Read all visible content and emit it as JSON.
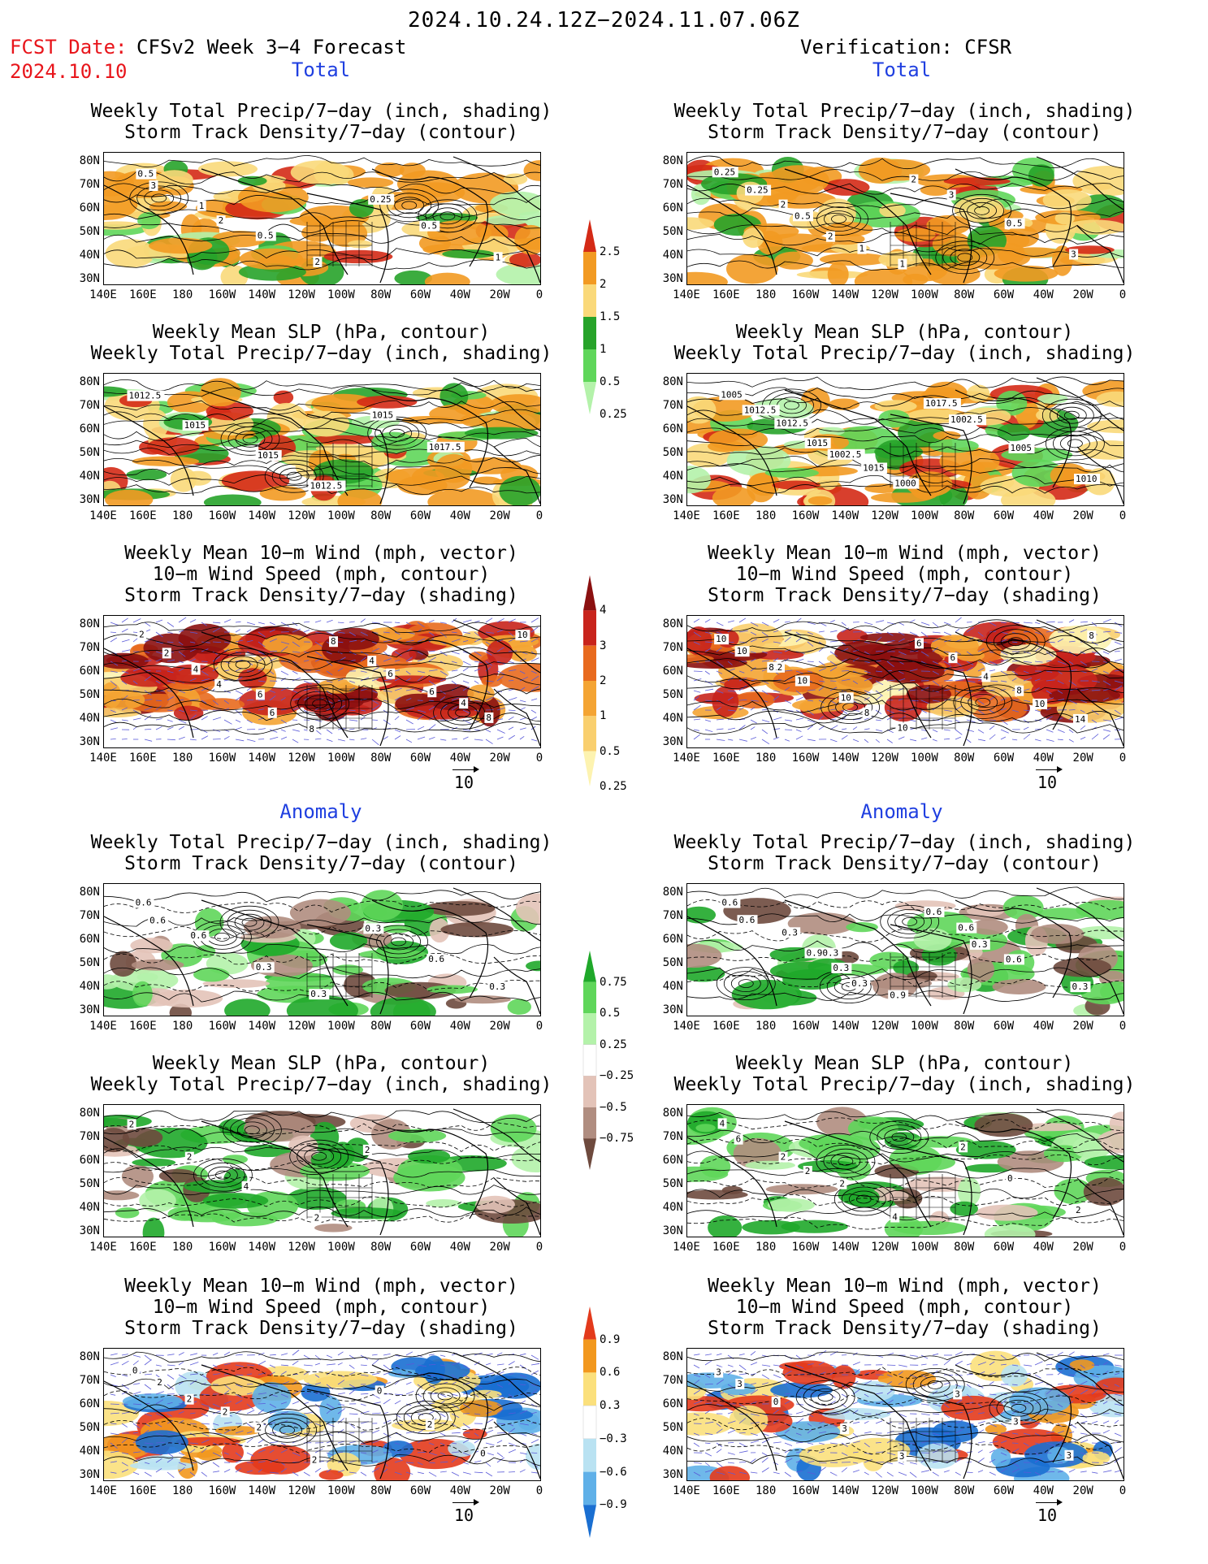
{
  "header": {
    "title": "2024.10.24.12Z−2024.11.07.06Z",
    "fcst_label": "FCST Date:",
    "fcst_date": "2024.10.10",
    "left_source": "CFSv2 Week 3−4 Forecast",
    "right_source": "Verification: CFSR"
  },
  "sections": {
    "total": "Total",
    "anomaly": "Anomaly"
  },
  "panel_titles": {
    "precip_storm": [
      "Weekly Total Precip/7−day (inch, shading)",
      "Storm Track Density/7−day (contour)"
    ],
    "slp_precip": [
      "Weekly Mean SLP (hPa, contour)",
      "Weekly Total Precip/7−day (inch, shading)"
    ],
    "wind_storm": [
      "Weekly Mean 10−m Wind (mph, vector)",
      "10−m Wind Speed (mph, contour)",
      "Storm Track Density/7−day (shading)"
    ]
  },
  "axes": {
    "lat": [
      "80N",
      "70N",
      "60N",
      "50N",
      "40N",
      "30N"
    ],
    "lon": [
      "140E",
      "160E",
      "180",
      "160W",
      "140W",
      "120W",
      "100W",
      "80W",
      "60W",
      "40W",
      "20W",
      "0"
    ]
  },
  "vector_ref": "10",
  "colorbars": {
    "total_precip": {
      "levels": [
        "2.5",
        "2",
        "1.5",
        "1",
        "0.5",
        "0.25"
      ],
      "colors": [
        "#d42a16",
        "#f29a22",
        "#fad97a",
        "#27a32a",
        "#5fd65a",
        "#b4f2aa"
      ]
    },
    "total_storm": {
      "levels": [
        "4",
        "3",
        "2",
        "1",
        "0.5",
        "0.25"
      ],
      "colors": [
        "#8b1010",
        "#c8241c",
        "#e86a1e",
        "#f4a433",
        "#f9cf6e",
        "#fdf3b0"
      ]
    },
    "anom_precip": {
      "levels": [
        "0.75",
        "0.5",
        "0.25",
        "−0.25",
        "−0.5",
        "−0.75"
      ],
      "colors": [
        "#1fa82a",
        "#5fd65a",
        "#b4f2aa",
        "#ffffff",
        "#e3c3b8",
        "#b08d80",
        "#6e4a3e"
      ]
    },
    "anom_storm": {
      "levels": [
        "0.9",
        "0.6",
        "0.3",
        "−0.3",
        "−0.6",
        "−0.9"
      ],
      "colors": [
        "#e33a1c",
        "#f2981e",
        "#fbe07c",
        "#ffffff",
        "#b9e2f2",
        "#5fb0e8",
        "#1a6fd1"
      ]
    }
  },
  "contour_labels": {
    "r1l": [
      "0.5",
      "1",
      "0.5",
      "2",
      "0.25",
      "0.5",
      "1",
      "3",
      "2"
    ],
    "r1r": [
      "0.25",
      "2",
      "2",
      "1",
      "3",
      "0.5",
      "3",
      "0.25",
      "0.5",
      "1",
      "2"
    ],
    "r2l": [
      "1012.5",
      "1015",
      "1015",
      "1012.5",
      "1015",
      "1017.5"
    ],
    "r2r": [
      "1005",
      "1012.5",
      "1002.5",
      "1000",
      "1002.5",
      "1005",
      "1010",
      "1012.5",
      "1015",
      "1015",
      "1017.5"
    ],
    "r3l": [
      "2",
      "4",
      "6",
      "8",
      "4",
      "6",
      "8",
      "2",
      "4",
      "6",
      "8",
      "6",
      "4",
      "10"
    ],
    "r3r": [
      "10",
      "12",
      "10",
      "10",
      "6",
      "8",
      "14",
      "10",
      "10",
      "8",
      "6",
      "4",
      "10",
      "8",
      "8"
    ],
    "r4l": [
      "0.6",
      "0.6",
      "0.3",
      "0.3",
      "0.3",
      "0.6",
      "0.3",
      "0.6"
    ],
    "r4r": [
      "0.6",
      "0.3",
      "0.3",
      "0.9",
      "0.6",
      "0.6",
      "0.3",
      "0.6",
      "0.90.3",
      "0.3",
      "0.6",
      "0.3"
    ],
    "r5l": [
      "2",
      "2",
      "4",
      "2",
      "2"
    ],
    "r5r": [
      "4",
      "2",
      "2",
      "4",
      "2",
      "0",
      "2",
      "6",
      "2"
    ],
    "r6l": [
      "0",
      "2",
      "2",
      "2",
      "0",
      "2",
      "0",
      "2",
      "2"
    ],
    "r6r": [
      "3",
      "0",
      "3",
      "3",
      "3",
      "3",
      "3",
      "3"
    ]
  }
}
